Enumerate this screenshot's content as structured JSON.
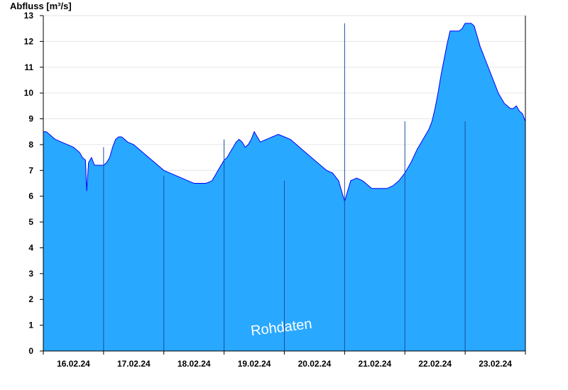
{
  "chart_data": {
    "type": "area",
    "ylabel": "Abfluss [m³/s]",
    "ylim": [
      0,
      13
    ],
    "yticks": [
      0,
      1,
      2,
      3,
      4,
      5,
      6,
      7,
      8,
      9,
      10,
      11,
      12,
      13
    ],
    "xlim_days": [
      0,
      8
    ],
    "x_tick_labels": [
      "16.02.24",
      "17.02.24",
      "18.02.24",
      "19.02.24",
      "20.02.24",
      "21.02.24",
      "22.02.24",
      "23.02.24"
    ],
    "grid": "horizontal",
    "annotation": "Rohdaten",
    "colors": {
      "fill": "#29a8ff",
      "line": "#0000ff",
      "axis": "#000000",
      "grid": "#e6e6e6",
      "day_separator": "#1a4fa0"
    },
    "series": [
      {
        "x": [
          0,
          0.05,
          0.1,
          0.15,
          0.2,
          0.3,
          0.4,
          0.5,
          0.6,
          0.65,
          0.7,
          0.72,
          0.75,
          0.8,
          0.85,
          0.9,
          0.95,
          1.0,
          1.05,
          1.1,
          1.15,
          1.2,
          1.25,
          1.3,
          1.35,
          1.4,
          1.5,
          1.6,
          1.7,
          1.8,
          1.9,
          2.0,
          2.1,
          2.2,
          2.3,
          2.4,
          2.5,
          2.6,
          2.7,
          2.8,
          2.85,
          2.9,
          2.95,
          3.0,
          3.05,
          3.1,
          3.15,
          3.2,
          3.25,
          3.3,
          3.35,
          3.4,
          3.45,
          3.5,
          3.55,
          3.6,
          3.7,
          3.8,
          3.9,
          4.0,
          4.1,
          4.2,
          4.3,
          4.4,
          4.5,
          4.6,
          4.7,
          4.8,
          4.9,
          5.0,
          5.1,
          5.2,
          5.3,
          5.35,
          5.4,
          5.45,
          5.5,
          5.6,
          5.7,
          5.8,
          5.9,
          6.0,
          6.1,
          6.2,
          6.3,
          6.35,
          6.4,
          6.45,
          6.5,
          6.55,
          6.6,
          6.65,
          6.7,
          6.75,
          6.8,
          6.85,
          6.9,
          6.95,
          7.0,
          7.05,
          7.1,
          7.15,
          7.2,
          7.25,
          7.3,
          7.35,
          7.4,
          7.45,
          7.5,
          7.55,
          7.6,
          7.65,
          7.7,
          7.75,
          7.8,
          7.85,
          7.9,
          7.95,
          8.0
        ],
        "y": [
          8.5,
          8.5,
          8.4,
          8.3,
          8.2,
          8.1,
          8.0,
          7.9,
          7.7,
          7.5,
          7.4,
          6.2,
          7.3,
          7.5,
          7.2,
          7.2,
          7.2,
          7.2,
          7.3,
          7.5,
          7.9,
          8.2,
          8.3,
          8.3,
          8.2,
          8.1,
          8.0,
          7.8,
          7.6,
          7.4,
          7.2,
          7.0,
          6.9,
          6.8,
          6.7,
          6.6,
          6.5,
          6.5,
          6.5,
          6.6,
          6.8,
          7.0,
          7.2,
          7.4,
          7.5,
          7.7,
          7.9,
          8.1,
          8.2,
          8.1,
          7.9,
          8.0,
          8.2,
          8.5,
          8.3,
          8.1,
          8.2,
          8.3,
          8.4,
          8.3,
          8.2,
          8.0,
          7.8,
          7.6,
          7.4,
          7.2,
          7.0,
          6.9,
          6.6,
          5.8,
          6.6,
          6.7,
          6.6,
          6.5,
          6.4,
          6.3,
          6.3,
          6.3,
          6.3,
          6.4,
          6.6,
          6.9,
          7.3,
          7.8,
          8.2,
          8.4,
          8.6,
          8.9,
          9.4,
          10.0,
          10.7,
          11.3,
          11.9,
          12.4,
          12.4,
          12.4,
          12.4,
          12.5,
          12.7,
          12.7,
          12.7,
          12.6,
          12.2,
          11.8,
          11.5,
          11.2,
          10.9,
          10.6,
          10.3,
          10.0,
          9.8,
          9.6,
          9.5,
          9.4,
          9.4,
          9.5,
          9.3,
          9.2,
          8.9
        ]
      }
    ]
  }
}
